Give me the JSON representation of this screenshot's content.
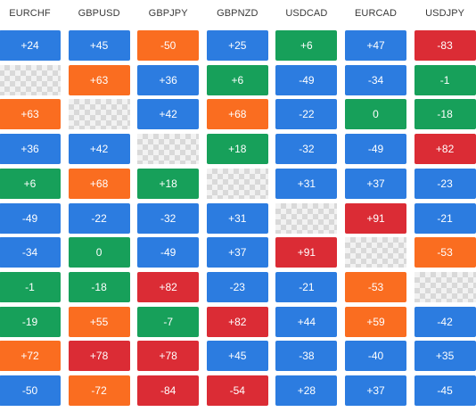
{
  "matrix": {
    "headers": [
      "EURCHF",
      "GBPUSD",
      "GBPJPY",
      "GBPNZD",
      "USDCAD",
      "EURCAD",
      "USDJPY"
    ],
    "colors": {
      "blue": "#2c7ce0",
      "green": "#17a05a",
      "orange": "#fa6d20",
      "red": "#db2c35"
    },
    "rows": [
      [
        {
          "v": "+24",
          "c": "blue"
        },
        {
          "v": "+45",
          "c": "blue"
        },
        {
          "v": "-50",
          "c": "orange"
        },
        {
          "v": "+25",
          "c": "blue"
        },
        {
          "v": "+6",
          "c": "green"
        },
        {
          "v": "+47",
          "c": "blue"
        },
        {
          "v": "-83",
          "c": "red"
        }
      ],
      [
        null,
        {
          "v": "+63",
          "c": "orange"
        },
        {
          "v": "+36",
          "c": "blue"
        },
        {
          "v": "+6",
          "c": "green"
        },
        {
          "v": "-49",
          "c": "blue"
        },
        {
          "v": "-34",
          "c": "blue"
        },
        {
          "v": "-1",
          "c": "green"
        }
      ],
      [
        {
          "v": "+63",
          "c": "orange"
        },
        null,
        {
          "v": "+42",
          "c": "blue"
        },
        {
          "v": "+68",
          "c": "orange"
        },
        {
          "v": "-22",
          "c": "blue"
        },
        {
          "v": "0",
          "c": "green"
        },
        {
          "v": "-18",
          "c": "green"
        }
      ],
      [
        {
          "v": "+36",
          "c": "blue"
        },
        {
          "v": "+42",
          "c": "blue"
        },
        null,
        {
          "v": "+18",
          "c": "green"
        },
        {
          "v": "-32",
          "c": "blue"
        },
        {
          "v": "-49",
          "c": "blue"
        },
        {
          "v": "+82",
          "c": "red"
        }
      ],
      [
        {
          "v": "+6",
          "c": "green"
        },
        {
          "v": "+68",
          "c": "orange"
        },
        {
          "v": "+18",
          "c": "green"
        },
        null,
        {
          "v": "+31",
          "c": "blue"
        },
        {
          "v": "+37",
          "c": "blue"
        },
        {
          "v": "-23",
          "c": "blue"
        }
      ],
      [
        {
          "v": "-49",
          "c": "blue"
        },
        {
          "v": "-22",
          "c": "blue"
        },
        {
          "v": "-32",
          "c": "blue"
        },
        {
          "v": "+31",
          "c": "blue"
        },
        null,
        {
          "v": "+91",
          "c": "red"
        },
        {
          "v": "-21",
          "c": "blue"
        }
      ],
      [
        {
          "v": "-34",
          "c": "blue"
        },
        {
          "v": "0",
          "c": "green"
        },
        {
          "v": "-49",
          "c": "blue"
        },
        {
          "v": "+37",
          "c": "blue"
        },
        {
          "v": "+91",
          "c": "red"
        },
        null,
        {
          "v": "-53",
          "c": "orange"
        }
      ],
      [
        {
          "v": "-1",
          "c": "green"
        },
        {
          "v": "-18",
          "c": "green"
        },
        {
          "v": "+82",
          "c": "red"
        },
        {
          "v": "-23",
          "c": "blue"
        },
        {
          "v": "-21",
          "c": "blue"
        },
        {
          "v": "-53",
          "c": "orange"
        },
        null
      ],
      [
        {
          "v": "-19",
          "c": "green"
        },
        {
          "v": "+55",
          "c": "orange"
        },
        {
          "v": "-7",
          "c": "green"
        },
        {
          "v": "+82",
          "c": "red"
        },
        {
          "v": "+44",
          "c": "blue"
        },
        {
          "v": "+59",
          "c": "orange"
        },
        {
          "v": "-42",
          "c": "blue"
        }
      ],
      [
        {
          "v": "+72",
          "c": "orange"
        },
        {
          "v": "+78",
          "c": "red"
        },
        {
          "v": "+78",
          "c": "red"
        },
        {
          "v": "+45",
          "c": "blue"
        },
        {
          "v": "-38",
          "c": "blue"
        },
        {
          "v": "-40",
          "c": "blue"
        },
        {
          "v": "+35",
          "c": "blue"
        }
      ],
      [
        {
          "v": "-50",
          "c": "blue"
        },
        {
          "v": "-72",
          "c": "orange"
        },
        {
          "v": "-84",
          "c": "red"
        },
        {
          "v": "-54",
          "c": "red"
        },
        {
          "v": "+28",
          "c": "blue"
        },
        {
          "v": "+37",
          "c": "blue"
        },
        {
          "v": "-45",
          "c": "blue"
        }
      ]
    ]
  }
}
